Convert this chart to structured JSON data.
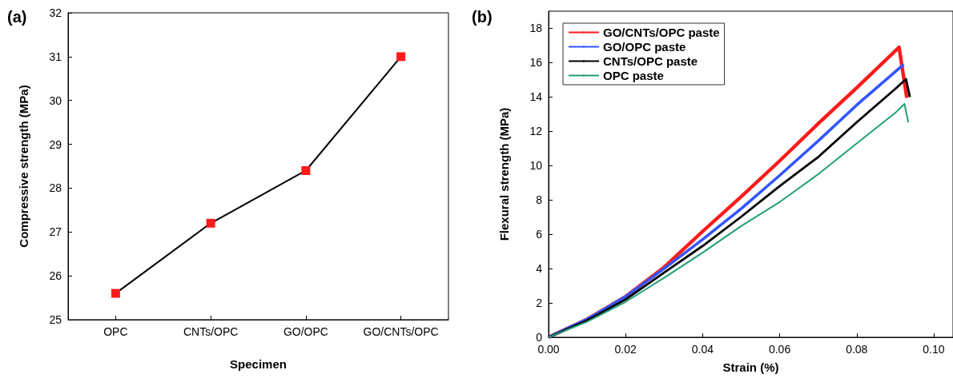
{
  "chart_data": [
    {
      "type": "line",
      "title": "(a)",
      "xlabel": "Specimen",
      "ylabel": "Compressive strength (MPa)",
      "categories": [
        "OPC",
        "CNTs/OPC",
        "GO/OPC",
        "GO/CNTs/OPC"
      ],
      "values": [
        25.6,
        27.2,
        28.4,
        31.0
      ],
      "color": "#000000",
      "colors": [
        "#ff1a1a",
        "#ff1a1a",
        "#ff1a1a",
        "#ff1a1a"
      ],
      "marker": "square",
      "ylim": [
        25,
        32
      ],
      "yticks": [
        25,
        26,
        27,
        28,
        29,
        30,
        31,
        32
      ],
      "grid": false,
      "legend": false
    },
    {
      "type": "line",
      "title": "(b)",
      "xlabel": "Strain (%)",
      "ylabel": "Flexural strength (MPa)",
      "series": [
        {
          "name": "GO/CNTs/OPC paste",
          "color": "#ff1a1a",
          "x": [
            0,
            0.01,
            0.02,
            0.03,
            0.04,
            0.05,
            0.06,
            0.07,
            0.08,
            0.091,
            0.093
          ],
          "values": [
            0,
            1.05,
            2.37,
            4.08,
            6.17,
            8.19,
            10.28,
            12.45,
            14.54,
            16.9,
            13.95
          ]
        },
        {
          "name": "GO/OPC paste",
          "color": "#3355ff",
          "x": [
            0,
            0.01,
            0.02,
            0.03,
            0.04,
            0.05,
            0.06,
            0.07,
            0.08,
            0.0922
          ],
          "values": [
            0,
            1.05,
            2.37,
            4.0,
            5.7,
            7.49,
            9.43,
            11.44,
            13.53,
            15.9
          ]
        },
        {
          "name": "CNTs/OPC paste",
          "color": "#000000",
          "x": [
            0,
            0.01,
            0.02,
            0.03,
            0.04,
            0.05,
            0.06,
            0.07,
            0.08,
            0.09,
            0.0928,
            0.0938
          ],
          "values": [
            0,
            0.98,
            2.2,
            3.77,
            5.32,
            7.02,
            8.81,
            10.5,
            12.53,
            14.47,
            15.04,
            14.0
          ]
        },
        {
          "name": "OPC paste",
          "color": "#1f9e7a",
          "x": [
            0,
            0.01,
            0.02,
            0.03,
            0.04,
            0.05,
            0.06,
            0.07,
            0.08,
            0.09,
            0.0924,
            0.0934
          ],
          "values": [
            0,
            0.9,
            2.06,
            3.46,
            4.93,
            6.48,
            7.88,
            9.5,
            11.29,
            13.07,
            13.6,
            12.53
          ]
        }
      ],
      "marker": "none",
      "xlim": [
        0,
        0.105
      ],
      "xticks": [
        {
          "value": 0,
          "label": "0.00"
        },
        {
          "value": 0.02,
          "label": "0.02"
        },
        {
          "value": 0.04,
          "label": "0.04"
        },
        {
          "value": 0.06,
          "label": "0.06"
        },
        {
          "value": 0.08,
          "label": "0.08"
        },
        {
          "value": 0.1,
          "label": "0.10"
        }
      ],
      "ylim": [
        0,
        19
      ],
      "yticks": [
        0,
        2,
        4,
        6,
        8,
        10,
        12,
        14,
        16,
        18
      ],
      "grid": false,
      "legend": "top left"
    }
  ]
}
